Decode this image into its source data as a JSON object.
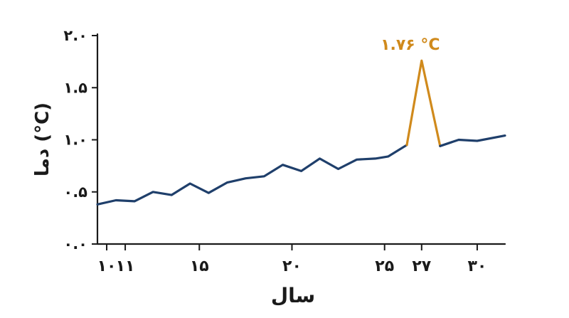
{
  "chart_data": {
    "type": "line",
    "title": "",
    "xlabel": "سال",
    "ylabel": "دما (°C)",
    "xlim": [
      9.5,
      31.5
    ],
    "ylim": [
      0.0,
      2.0
    ],
    "x_ticks": [
      {
        "value": 10,
        "label": "۱۰"
      },
      {
        "value": 11,
        "label": "۱۱"
      },
      {
        "value": 15,
        "label": "۱۵"
      },
      {
        "value": 20,
        "label": "۲۰"
      },
      {
        "value": 25,
        "label": "۲۵"
      },
      {
        "value": 27,
        "label": "۲۷"
      },
      {
        "value": 30,
        "label": "۳۰"
      }
    ],
    "y_ticks": [
      {
        "value": 0.0,
        "label": "۰.۰"
      },
      {
        "value": 0.5,
        "label": "۰.۵"
      },
      {
        "value": 1.0,
        "label": "۱.۰"
      },
      {
        "value": 1.5,
        "label": "۱.۵"
      },
      {
        "value": 2.0,
        "label": "۲.۰"
      }
    ],
    "grid": false,
    "legend": "none",
    "series": [
      {
        "color": "#1f3f6b",
        "x": [
          9.5,
          10.5,
          11.5,
          12.5,
          13.5,
          14.5,
          15.5,
          16.5,
          17.5,
          18.5,
          19.5,
          20.5,
          21.5,
          22.5,
          23.5,
          24.5,
          25.2,
          26.2
        ],
        "y": [
          0.38,
          0.42,
          0.41,
          0.5,
          0.47,
          0.58,
          0.49,
          0.59,
          0.63,
          0.65,
          0.76,
          0.7,
          0.82,
          0.72,
          0.81,
          0.82,
          0.84,
          0.95
        ]
      },
      {
        "color": "#d08a1c",
        "x": [
          26.2,
          27.0,
          28.0
        ],
        "y": [
          0.95,
          1.76,
          0.94
        ]
      },
      {
        "color": "#1f3f6b",
        "x": [
          28.0,
          29.0,
          30.0,
          31.5
        ],
        "y": [
          0.94,
          1.0,
          0.99,
          1.04
        ]
      }
    ],
    "annotations": [
      {
        "x": 27.0,
        "y": 1.76,
        "text": "۱.۷۶ °C",
        "color": "#d08a1c"
      }
    ]
  }
}
